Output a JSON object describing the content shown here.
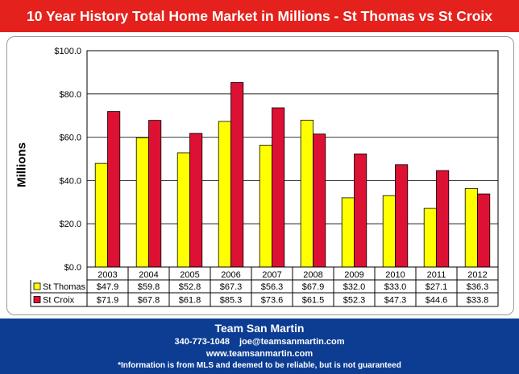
{
  "header": {
    "title": "10 Year History Total Home Market in Millions - St Thomas vs St Croix"
  },
  "footer": {
    "name": "Team San Martin",
    "phone": "340-773-1048",
    "email": "joe@teamsanmartin.com",
    "website": "www.teamsanmartin.com",
    "disclaimer": "*Information is from MLS and deemed to be reliable, but is not guaranteed"
  },
  "colors": {
    "header_band": "#e4211c",
    "footer_band": "#0c3d93"
  },
  "chart_data": {
    "type": "bar",
    "title": "10 Year History Total Home Market in Millions - St Thomas vs St Croix",
    "ylabel": "Millions",
    "xlabel": "",
    "categories": [
      "2003",
      "2004",
      "2005",
      "2006",
      "2007",
      "2008",
      "2009",
      "2010",
      "2011",
      "2012"
    ],
    "series": [
      {
        "name": "St Thomas",
        "color": "#ffff00",
        "values": [
          47.9,
          59.8,
          52.8,
          67.3,
          56.3,
          67.9,
          32.0,
          33.0,
          27.1,
          36.3
        ],
        "labels": [
          "$47.9",
          "$59.8",
          "$52.8",
          "$67.3",
          "$56.3",
          "$67.9",
          "$32.0",
          "$33.0",
          "$27.1",
          "$36.3"
        ]
      },
      {
        "name": "St Croix",
        "color": "#dd1133",
        "values": [
          71.9,
          67.8,
          61.8,
          85.3,
          73.6,
          61.5,
          52.3,
          47.3,
          44.6,
          33.8
        ],
        "labels": [
          "$71.9",
          "$67.8",
          "$61.8",
          "$85.3",
          "$73.6",
          "$61.5",
          "$52.3",
          "$47.3",
          "$44.6",
          "$33.8"
        ]
      }
    ],
    "ylim": [
      0,
      100
    ],
    "yticks": [
      0,
      20,
      40,
      60,
      80,
      100
    ],
    "ytick_labels": [
      "$0.0",
      "$20.0",
      "$40.0",
      "$60.0",
      "$80.0",
      "$100.0"
    ],
    "grid": true,
    "legend": "data-table-left"
  }
}
